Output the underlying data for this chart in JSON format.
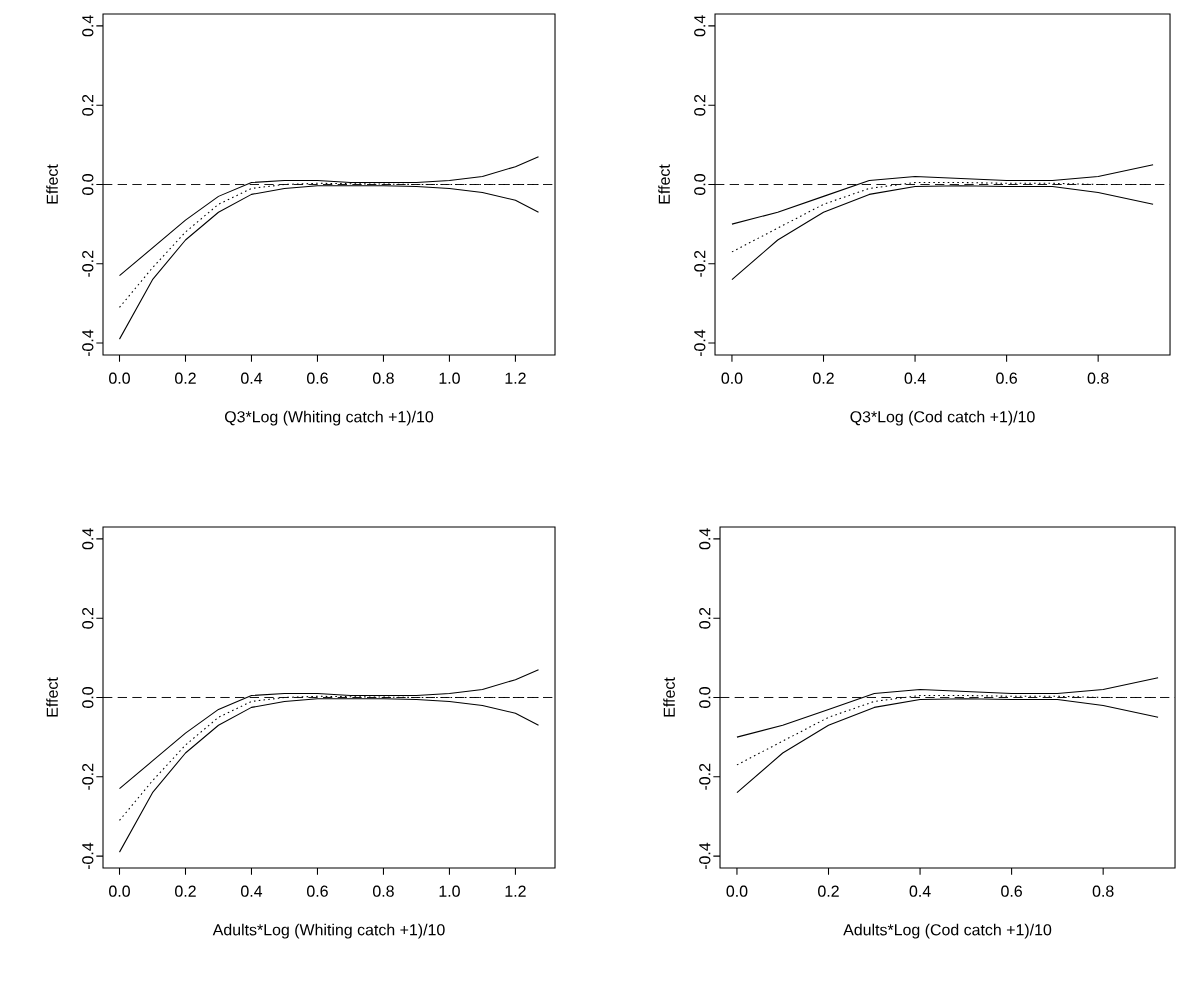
{
  "chart_data": [
    {
      "type": "line",
      "xlabel": "Q3*Log (Whiting catch +1)/10",
      "ylabel": "Effect",
      "x": [
        0,
        0.1,
        0.2,
        0.3,
        0.4,
        0.5,
        0.6,
        0.7,
        0.8,
        0.9,
        1.0,
        1.1,
        1.2,
        1.27
      ],
      "xlim": [
        -0.05,
        1.32
      ],
      "ylim": [
        -0.43,
        0.43
      ],
      "xticks": [
        {
          "value": 0,
          "label": "0.0"
        },
        {
          "value": 0.2,
          "label": "0.2"
        },
        {
          "value": 0.4,
          "label": "0.4"
        },
        {
          "value": 0.6,
          "label": "0.6"
        },
        {
          "value": 0.8,
          "label": "0.8"
        },
        {
          "value": 1,
          "label": "1.0"
        },
        {
          "value": 1.2,
          "label": "1.2"
        }
      ],
      "yticks": [
        {
          "value": -0.4,
          "label": "-0.4"
        },
        {
          "value": -0.2,
          "label": "-0.2"
        },
        {
          "value": 0,
          "label": "0.0"
        },
        {
          "value": 0.2,
          "label": "0.2"
        },
        {
          "value": 0.4,
          "label": "0.4"
        }
      ],
      "series": [
        {
          "color": "#000000",
          "line_style": "solid",
          "values": [
            -0.23,
            -0.16,
            -0.09,
            -0.03,
            0.005,
            0.01,
            0.01,
            0.005,
            0.005,
            0.005,
            0.01,
            0.02,
            0.045,
            0.07
          ]
        },
        {
          "color": "#000000",
          "line_style": "dotted",
          "values": [
            -0.31,
            -0.21,
            -0.12,
            -0.05,
            -0.01,
            0.0,
            0.003,
            0.002,
            0.001,
            0.0,
            0.0,
            0.0,
            0.0,
            0.0
          ]
        },
        {
          "color": "#000000",
          "line_style": "solid",
          "values": [
            -0.39,
            -0.24,
            -0.14,
            -0.07,
            -0.025,
            -0.01,
            -0.003,
            -0.003,
            -0.003,
            -0.005,
            -0.01,
            -0.02,
            -0.04,
            -0.07
          ]
        }
      ],
      "ref_lines": [
        {
          "axis": "y",
          "value": 0,
          "line_style": "dashed",
          "color": "#000000"
        }
      ]
    },
    {
      "type": "line",
      "xlabel": "Q3*Log (Cod catch +1)/10",
      "ylabel": "Effect",
      "x": [
        0,
        0.1,
        0.2,
        0.3,
        0.4,
        0.5,
        0.6,
        0.7,
        0.8,
        0.92
      ],
      "xlim": [
        -0.037,
        0.957
      ],
      "ylim": [
        -0.43,
        0.43
      ],
      "xticks": [
        {
          "value": 0,
          "label": "0.0"
        },
        {
          "value": 0.2,
          "label": "0.2"
        },
        {
          "value": 0.4,
          "label": "0.4"
        },
        {
          "value": 0.6,
          "label": "0.6"
        },
        {
          "value": 0.8,
          "label": "0.8"
        }
      ],
      "yticks": [
        {
          "value": -0.4,
          "label": "-0.4"
        },
        {
          "value": -0.2,
          "label": "-0.2"
        },
        {
          "value": 0,
          "label": "0.0"
        },
        {
          "value": 0.2,
          "label": "0.2"
        },
        {
          "value": 0.4,
          "label": "0.4"
        }
      ],
      "series": [
        {
          "color": "#000000",
          "line_style": "solid",
          "values": [
            -0.1,
            -0.07,
            -0.03,
            0.01,
            0.02,
            0.015,
            0.01,
            0.01,
            0.02,
            0.05
          ]
        },
        {
          "color": "#000000",
          "line_style": "dotted",
          "values": [
            -0.17,
            -0.11,
            -0.05,
            -0.01,
            0.005,
            0.005,
            0.003,
            0.003,
            0.0,
            0.0
          ]
        },
        {
          "color": "#000000",
          "line_style": "solid",
          "values": [
            -0.24,
            -0.14,
            -0.07,
            -0.025,
            -0.005,
            -0.003,
            -0.005,
            -0.005,
            -0.02,
            -0.05
          ]
        }
      ],
      "ref_lines": [
        {
          "axis": "y",
          "value": 0,
          "line_style": "dashed",
          "color": "#000000"
        }
      ]
    },
    {
      "type": "line",
      "xlabel": "Adults*Log (Whiting catch +1)/10",
      "ylabel": "Effect",
      "x": [
        0,
        0.1,
        0.2,
        0.3,
        0.4,
        0.5,
        0.6,
        0.7,
        0.8,
        0.9,
        1.0,
        1.1,
        1.2,
        1.27
      ],
      "xlim": [
        -0.05,
        1.32
      ],
      "ylim": [
        -0.43,
        0.43
      ],
      "xticks": [
        {
          "value": 0,
          "label": "0.0"
        },
        {
          "value": 0.2,
          "label": "0.2"
        },
        {
          "value": 0.4,
          "label": "0.4"
        },
        {
          "value": 0.6,
          "label": "0.6"
        },
        {
          "value": 0.8,
          "label": "0.8"
        },
        {
          "value": 1,
          "label": "1.0"
        },
        {
          "value": 1.2,
          "label": "1.2"
        }
      ],
      "yticks": [
        {
          "value": -0.4,
          "label": "-0.4"
        },
        {
          "value": -0.2,
          "label": "-0.2"
        },
        {
          "value": 0,
          "label": "0.0"
        },
        {
          "value": 0.2,
          "label": "0.2"
        },
        {
          "value": 0.4,
          "label": "0.4"
        }
      ],
      "series": [
        {
          "color": "#000000",
          "line_style": "solid",
          "values": [
            -0.23,
            -0.16,
            -0.09,
            -0.03,
            0.005,
            0.01,
            0.01,
            0.005,
            0.005,
            0.005,
            0.01,
            0.02,
            0.045,
            0.07
          ]
        },
        {
          "color": "#000000",
          "line_style": "dotted",
          "values": [
            -0.31,
            -0.21,
            -0.12,
            -0.05,
            -0.01,
            0.0,
            0.003,
            0.002,
            0.001,
            0.0,
            0.0,
            0.0,
            0.0,
            0.0
          ]
        },
        {
          "color": "#000000",
          "line_style": "solid",
          "values": [
            -0.39,
            -0.24,
            -0.14,
            -0.07,
            -0.025,
            -0.01,
            -0.003,
            -0.003,
            -0.003,
            -0.005,
            -0.01,
            -0.02,
            -0.04,
            -0.07
          ]
        }
      ],
      "ref_lines": [
        {
          "axis": "y",
          "value": 0,
          "line_style": "dashed",
          "color": "#000000"
        }
      ]
    },
    {
      "type": "line",
      "xlabel": "Adults*Log (Cod catch +1)/10",
      "ylabel": "Effect",
      "x": [
        0,
        0.1,
        0.2,
        0.3,
        0.4,
        0.5,
        0.6,
        0.7,
        0.8,
        0.92
      ],
      "xlim": [
        -0.037,
        0.957
      ],
      "ylim": [
        -0.43,
        0.43
      ],
      "xticks": [
        {
          "value": 0,
          "label": "0.0"
        },
        {
          "value": 0.2,
          "label": "0.2"
        },
        {
          "value": 0.4,
          "label": "0.4"
        },
        {
          "value": 0.6,
          "label": "0.6"
        },
        {
          "value": 0.8,
          "label": "0.8"
        }
      ],
      "yticks": [
        {
          "value": -0.4,
          "label": "-0.4"
        },
        {
          "value": -0.2,
          "label": "-0.2"
        },
        {
          "value": 0,
          "label": "0.0"
        },
        {
          "value": 0.2,
          "label": "0.2"
        },
        {
          "value": 0.4,
          "label": "0.4"
        }
      ],
      "series": [
        {
          "color": "#000000",
          "line_style": "solid",
          "values": [
            -0.1,
            -0.07,
            -0.03,
            0.01,
            0.02,
            0.015,
            0.01,
            0.01,
            0.02,
            0.05
          ]
        },
        {
          "color": "#000000",
          "line_style": "dotted",
          "values": [
            -0.17,
            -0.11,
            -0.05,
            -0.01,
            0.005,
            0.005,
            0.003,
            0.003,
            0.0,
            0.0
          ]
        },
        {
          "color": "#000000",
          "line_style": "solid",
          "values": [
            -0.24,
            -0.14,
            -0.07,
            -0.025,
            -0.005,
            -0.003,
            -0.005,
            -0.005,
            -0.02,
            -0.05
          ]
        }
      ],
      "ref_lines": [
        {
          "axis": "y",
          "value": 0,
          "line_style": "dashed",
          "color": "#000000"
        }
      ]
    }
  ]
}
